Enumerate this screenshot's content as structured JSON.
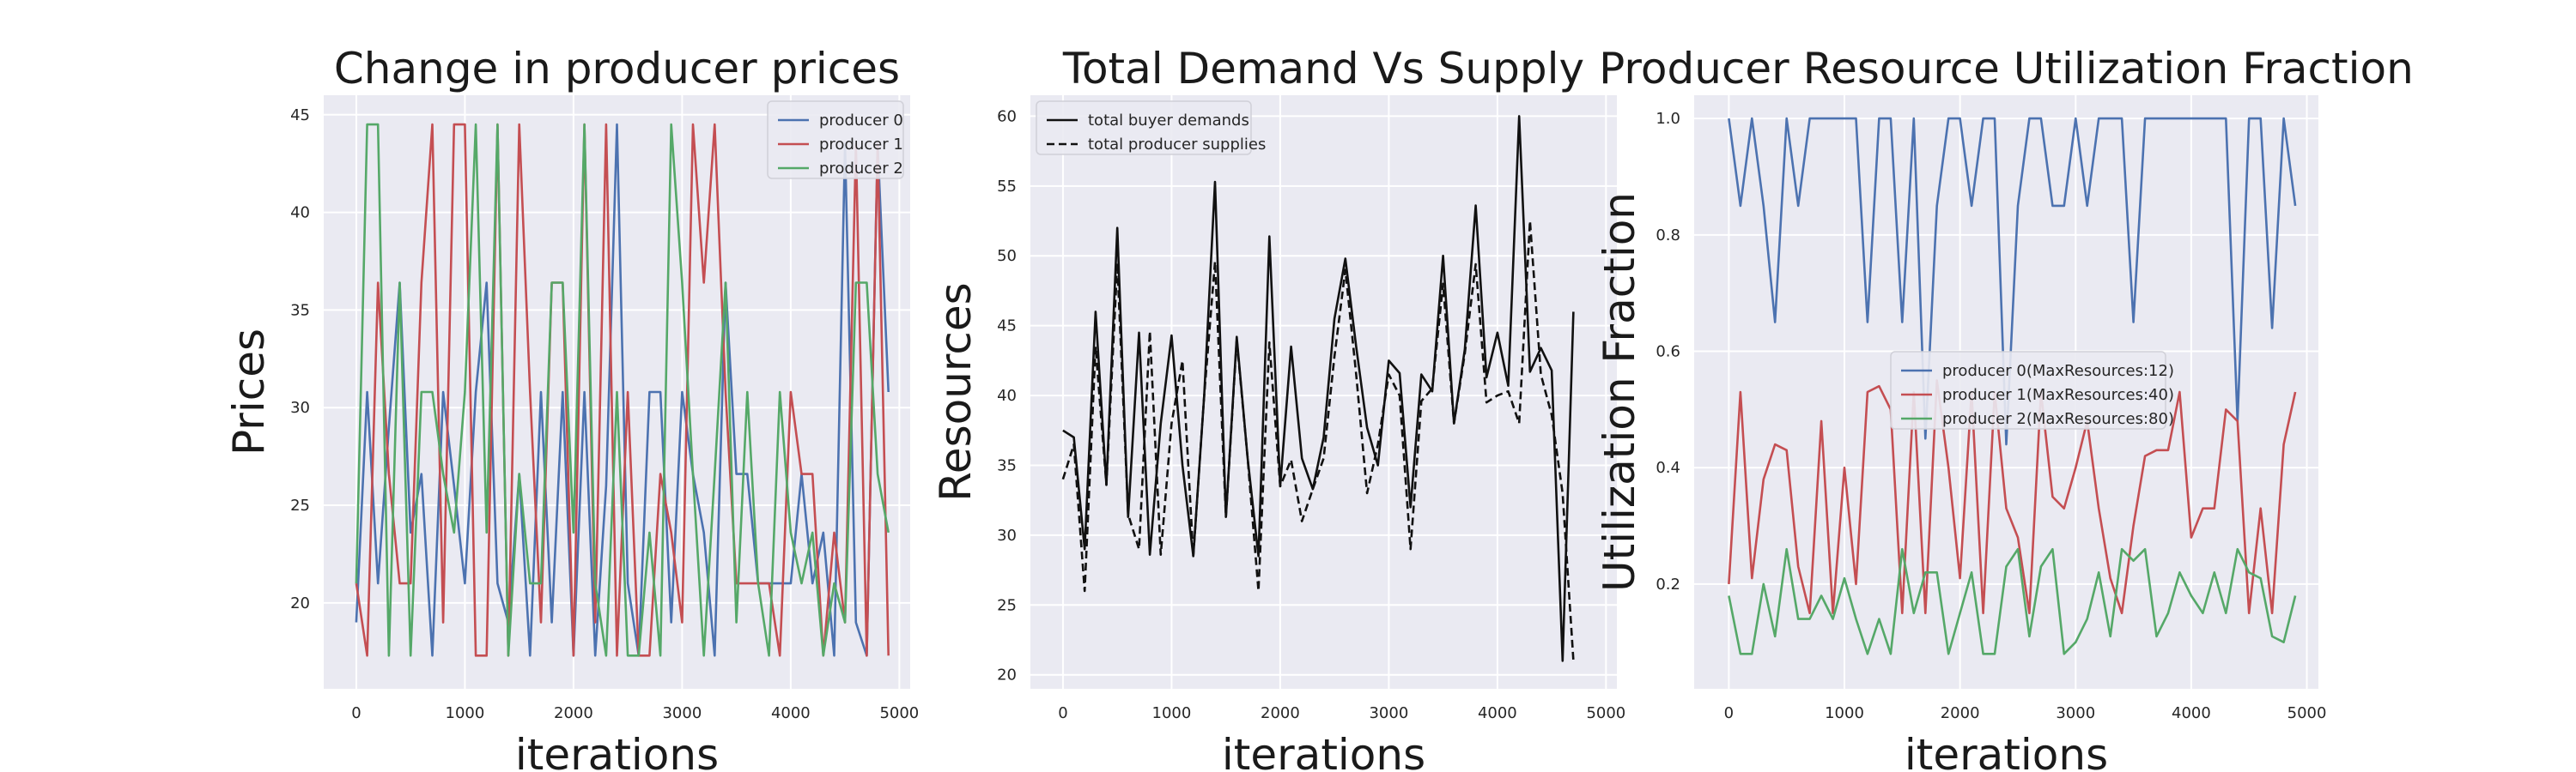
{
  "chart_data": [
    {
      "type": "line",
      "title": "Change in producer prices",
      "xlabel": "iterations",
      "ylabel": "Prices",
      "xlim": [
        -300,
        5100
      ],
      "ylim": [
        15.6,
        46
      ],
      "xticks": [
        0,
        1000,
        2000,
        3000,
        4000,
        5000
      ],
      "yticks": [
        20,
        25,
        30,
        35,
        40,
        45
      ],
      "legend_position": "top-right",
      "grid": true,
      "x": [
        0,
        100,
        200,
        300,
        400,
        500,
        600,
        700,
        800,
        900,
        1000,
        1100,
        1200,
        1300,
        1400,
        1500,
        1600,
        1700,
        1800,
        1900,
        2000,
        2100,
        2200,
        2300,
        2400,
        2500,
        2600,
        2700,
        2800,
        2900,
        3000,
        3100,
        3200,
        3300,
        3400,
        3500,
        3600,
        3700,
        3800,
        3900,
        4000,
        4100,
        4200,
        4300,
        4400,
        4500,
        4600,
        4700,
        4800,
        4900
      ],
      "series": [
        {
          "name": "producer 0",
          "color": "#4C72B0",
          "values": [
            19,
            30.8,
            21,
            29,
            36.4,
            23.6,
            26.6,
            17.3,
            30.8,
            26,
            21,
            30.8,
            36.4,
            21,
            19,
            26.6,
            17.3,
            30.8,
            19,
            30.8,
            17.3,
            30.8,
            17.3,
            26,
            44.5,
            21,
            17.3,
            30.8,
            30.8,
            19,
            30.8,
            26.6,
            23.6,
            17.3,
            36.4,
            26.6,
            26.6,
            21,
            21,
            21,
            21,
            26.6,
            21,
            23.6,
            17.3,
            43.5,
            19,
            17.3,
            43.5,
            30.8
          ]
        },
        {
          "name": "producer 1",
          "color": "#C44E52",
          "values": [
            21,
            17.3,
            36.4,
            26.6,
            21,
            21,
            36.4,
            44.5,
            19,
            44.5,
            44.5,
            17.3,
            17.3,
            44.5,
            17.3,
            44.5,
            30.8,
            19,
            36.4,
            36.4,
            17.3,
            44.5,
            19,
            44.5,
            17.3,
            30.8,
            17.3,
            17.3,
            26.6,
            23.6,
            19,
            44.5,
            36.4,
            44.5,
            30.8,
            21,
            21,
            21,
            21,
            17.3,
            30.8,
            26.6,
            26.6,
            17.3,
            23.6,
            19,
            43.5,
            17.3,
            43.5,
            17.3
          ]
        },
        {
          "name": "producer 2",
          "color": "#55A868",
          "values": [
            21,
            44.5,
            44.5,
            17.3,
            36.4,
            17.3,
            30.8,
            30.8,
            26.6,
            23.6,
            30.8,
            44.5,
            23.6,
            44.5,
            17.3,
            26.6,
            21,
            21,
            36.4,
            36.4,
            23.6,
            44.5,
            21,
            17.3,
            30.8,
            17.3,
            17.3,
            23.6,
            17.3,
            44.5,
            36.4,
            26.6,
            17.3,
            26.6,
            36.4,
            19,
            30.8,
            21,
            17.3,
            30.8,
            23.6,
            21,
            23.6,
            17.3,
            21,
            19,
            36.4,
            36.4,
            26.6,
            23.6
          ]
        }
      ]
    },
    {
      "type": "line",
      "title": "Total Demand Vs Supply",
      "xlabel": "iterations",
      "ylabel": "Resources",
      "xlim": [
        -300,
        5100
      ],
      "ylim": [
        19,
        61.5
      ],
      "xticks": [
        0,
        1000,
        2000,
        3000,
        4000,
        5000
      ],
      "yticks": [
        20,
        25,
        30,
        35,
        40,
        45,
        50,
        55,
        60
      ],
      "legend_position": "top-left",
      "grid": true,
      "x": [
        0,
        100,
        200,
        300,
        400,
        500,
        600,
        700,
        800,
        900,
        1000,
        1100,
        1200,
        1300,
        1400,
        1500,
        1600,
        1700,
        1800,
        1900,
        2000,
        2100,
        2200,
        2300,
        2400,
        2500,
        2600,
        2700,
        2800,
        2900,
        3000,
        3100,
        3200,
        3300,
        3400,
        3500,
        3600,
        3700,
        3800,
        3900,
        4000,
        4100,
        4200,
        4300,
        4400,
        4500,
        4600,
        4700,
        4800,
        4900
      ],
      "series": [
        {
          "name": "total buyer demands",
          "color": "#111111",
          "dash": "solid",
          "values": [
            37.5,
            37,
            29,
            46,
            33.6,
            52,
            31.3,
            44.5,
            28.6,
            38,
            44.3,
            35,
            28.5,
            40,
            55.3,
            31.3,
            44.2,
            35.5,
            28.5,
            51.4,
            33.5,
            43.5,
            35.5,
            33.3,
            37,
            45.5,
            49.8,
            43.5,
            37.7,
            35,
            42.5,
            41.6,
            32,
            41.5,
            40.3,
            50,
            38,
            43.3,
            53.6,
            41.3,
            44.5,
            40.7,
            60,
            41.7,
            43.4,
            41.8,
            21,
            46,
            null,
            null
          ]
        },
        {
          "name": "total producer supplies",
          "color": "#111111",
          "dash": "dashed",
          "values": [
            34,
            36.5,
            26,
            43.5,
            33.6,
            49.5,
            31.5,
            29,
            44.6,
            28.6,
            38,
            42.5,
            28.5,
            40,
            49.6,
            31.3,
            44,
            35.5,
            26,
            43.8,
            33.5,
            35.4,
            31,
            33.3,
            35.5,
            42.8,
            49,
            41.5,
            33,
            36.5,
            41.5,
            40,
            29,
            39.6,
            40.5,
            48,
            38,
            43,
            49.4,
            39.5,
            40,
            40.3,
            38,
            52.5,
            41.5,
            38.6,
            33,
            21,
            null,
            null
          ]
        }
      ]
    },
    {
      "type": "line",
      "title": "Producer Resource Utilization Fraction",
      "xlabel": "iterations",
      "ylabel": "Utilization Fraction",
      "xlim": [
        -300,
        5100
      ],
      "ylim": [
        0.02,
        1.04
      ],
      "xticks": [
        0,
        1000,
        2000,
        3000,
        4000,
        5000
      ],
      "yticks": [
        0.2,
        0.4,
        0.6,
        0.8,
        1.0
      ],
      "legend_position": "center-right",
      "grid": true,
      "x": [
        0,
        100,
        200,
        300,
        400,
        500,
        600,
        700,
        800,
        900,
        1000,
        1100,
        1200,
        1300,
        1400,
        1500,
        1600,
        1700,
        1800,
        1900,
        2000,
        2100,
        2200,
        2300,
        2400,
        2500,
        2600,
        2700,
        2800,
        2900,
        3000,
        3100,
        3200,
        3300,
        3400,
        3500,
        3600,
        3700,
        3800,
        3900,
        4000,
        4100,
        4200,
        4300,
        4400,
        4500,
        4600,
        4700,
        4800,
        4900
      ],
      "series": [
        {
          "name": "producer 0(MaxResources:12)",
          "color": "#4C72B0",
          "values": [
            1.0,
            0.85,
            1.0,
            0.85,
            0.65,
            1.0,
            0.85,
            1.0,
            1.0,
            1.0,
            1.0,
            1.0,
            0.65,
            1.0,
            1.0,
            0.65,
            1.0,
            0.45,
            0.85,
            1.0,
            1.0,
            0.85,
            1.0,
            1.0,
            0.44,
            0.85,
            1.0,
            1.0,
            0.85,
            0.85,
            1.0,
            0.85,
            1.0,
            1.0,
            1.0,
            0.65,
            1.0,
            1.0,
            1.0,
            1.0,
            1.0,
            1.0,
            1.0,
            1.0,
            0.48,
            1.0,
            1.0,
            0.64,
            1.0,
            0.85
          ]
        },
        {
          "name": "producer 1(MaxResources:40)",
          "color": "#C44E52",
          "values": [
            0.2,
            0.53,
            0.21,
            0.38,
            0.44,
            0.43,
            0.23,
            0.15,
            0.48,
            0.15,
            0.4,
            0.2,
            0.53,
            0.54,
            0.5,
            0.15,
            0.53,
            0.15,
            0.55,
            0.4,
            0.21,
            0.53,
            0.15,
            0.53,
            0.33,
            0.28,
            0.15,
            0.53,
            0.35,
            0.33,
            0.4,
            0.48,
            0.33,
            0.21,
            0.15,
            0.3,
            0.42,
            0.43,
            0.43,
            0.53,
            0.28,
            0.33,
            0.33,
            0.5,
            0.48,
            0.15,
            0.33,
            0.15,
            0.44,
            0.53
          ]
        },
        {
          "name": "producer 2(MaxResources:80)",
          "color": "#55A868",
          "values": [
            0.18,
            0.08,
            0.08,
            0.2,
            0.11,
            0.26,
            0.14,
            0.14,
            0.18,
            0.14,
            0.21,
            0.14,
            0.08,
            0.14,
            0.08,
            0.26,
            0.15,
            0.22,
            0.22,
            0.08,
            0.15,
            0.22,
            0.08,
            0.08,
            0.23,
            0.26,
            0.11,
            0.23,
            0.26,
            0.08,
            0.1,
            0.14,
            0.22,
            0.11,
            0.26,
            0.24,
            0.26,
            0.11,
            0.15,
            0.22,
            0.18,
            0.15,
            0.22,
            0.15,
            0.26,
            0.22,
            0.21,
            0.11,
            0.1,
            0.18
          ]
        }
      ]
    }
  ]
}
